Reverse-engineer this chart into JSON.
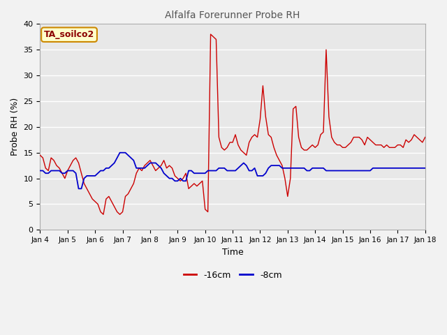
{
  "title": "Alfalfa Forerunner Probe RH",
  "xlabel": "Time",
  "ylabel": "Probe RH (%)",
  "ylim": [
    0,
    40
  ],
  "yticks": [
    0,
    5,
    10,
    15,
    20,
    25,
    30,
    35,
    40
  ],
  "xlabels": [
    "Jan 4",
    "Jan 5",
    "Jan 6",
    "Jan 7",
    "Jan 8",
    "Jan 9",
    "Jan 10",
    "Jan 11",
    "Jan 12",
    "Jan 13",
    "Jan 14",
    "Jan 15",
    "Jan 16",
    "Jan 17",
    "Jan 18"
  ],
  "annotation_text": "TA_soilco2",
  "annotation_bg": "#ffffcc",
  "annotation_border": "#cc8800",
  "line1_color": "#cc0000",
  "line2_color": "#0000cc",
  "legend_labels": [
    "-16cm",
    "-8cm"
  ],
  "bg_color": "#e8e8e8",
  "fig_bg_color": "#f2f2f2",
  "grid_color": "#ffffff",
  "red_data_y": [
    14.5,
    14.0,
    12.0,
    11.5,
    14.0,
    13.5,
    12.5,
    12.0,
    11.0,
    10.0,
    11.5,
    12.5,
    13.5,
    14.0,
    13.0,
    11.0,
    9.0,
    8.0,
    7.0,
    6.0,
    5.5,
    5.0,
    3.5,
    3.0,
    6.0,
    6.5,
    5.5,
    4.5,
    3.5,
    3.0,
    3.5,
    6.5,
    7.0,
    8.0,
    9.0,
    11.0,
    12.0,
    11.5,
    12.5,
    13.0,
    13.5,
    12.5,
    11.5,
    12.0,
    12.5,
    13.5,
    12.0,
    12.5,
    12.0,
    10.5,
    10.0,
    9.5,
    10.0,
    11.0,
    8.0,
    8.5,
    9.0,
    8.5,
    9.0,
    9.5,
    4.0,
    3.5,
    38.0,
    37.5,
    37.0,
    18.0,
    16.0,
    15.5,
    16.0,
    17.0,
    17.0,
    18.5,
    16.5,
    15.5,
    15.0,
    14.5,
    17.0,
    18.0,
    18.5,
    18.0,
    21.5,
    28.0,
    22.0,
    18.5,
    18.0,
    16.0,
    14.5,
    13.5,
    12.5,
    10.0,
    6.5,
    10.0,
    23.5,
    24.0,
    18.0,
    16.0,
    15.5,
    15.5,
    16.0,
    16.5,
    16.0,
    16.5,
    18.5,
    19.0,
    35.0,
    22.0,
    18.0,
    17.0,
    16.5,
    16.5,
    16.0,
    16.0,
    16.5,
    17.0,
    18.0,
    18.0,
    18.0,
    17.5,
    16.5,
    18.0,
    17.5,
    17.0,
    16.5,
    16.5,
    16.5,
    16.0,
    16.5,
    16.0,
    16.0,
    16.0,
    16.5,
    16.5,
    16.0,
    17.5,
    17.0,
    17.5,
    18.5,
    18.0,
    17.5,
    17.0,
    18.0
  ],
  "blue_data_y": [
    11.5,
    11.5,
    11.0,
    11.0,
    11.5,
    11.5,
    11.5,
    11.5,
    11.0,
    11.0,
    11.5,
    11.5,
    11.5,
    11.0,
    8.0,
    8.0,
    10.0,
    10.5,
    10.5,
    10.5,
    10.5,
    11.0,
    11.5,
    11.5,
    12.0,
    12.0,
    12.5,
    13.0,
    14.0,
    15.0,
    15.0,
    15.0,
    14.5,
    14.0,
    13.5,
    12.0,
    12.0,
    12.0,
    12.0,
    12.5,
    13.0,
    13.0,
    13.0,
    12.5,
    12.0,
    11.0,
    10.5,
    10.0,
    10.0,
    9.5,
    9.5,
    10.0,
    9.5,
    9.5,
    11.5,
    11.5,
    11.0,
    11.0,
    11.0,
    11.0,
    11.0,
    11.5,
    11.5,
    11.5,
    11.5,
    12.0,
    12.0,
    12.0,
    11.5,
    11.5,
    11.5,
    11.5,
    12.0,
    12.5,
    13.0,
    12.5,
    11.5,
    11.5,
    12.0,
    10.5,
    10.5,
    10.5,
    11.0,
    12.0,
    12.5,
    12.5,
    12.5,
    12.5,
    12.0,
    12.0,
    12.0,
    12.0,
    12.0,
    12.0,
    12.0,
    12.0,
    12.0,
    11.5,
    11.5,
    12.0,
    12.0,
    12.0,
    12.0,
    12.0,
    11.5,
    11.5,
    11.5,
    11.5,
    11.5,
    11.5,
    11.5,
    11.5,
    11.5,
    11.5,
    11.5,
    11.5,
    11.5,
    11.5,
    11.5,
    11.5,
    11.5,
    12.0,
    12.0,
    12.0,
    12.0,
    12.0,
    12.0,
    12.0,
    12.0,
    12.0,
    12.0,
    12.0,
    12.0,
    12.0,
    12.0,
    12.0,
    12.0,
    12.0,
    12.0,
    12.0,
    12.0
  ]
}
